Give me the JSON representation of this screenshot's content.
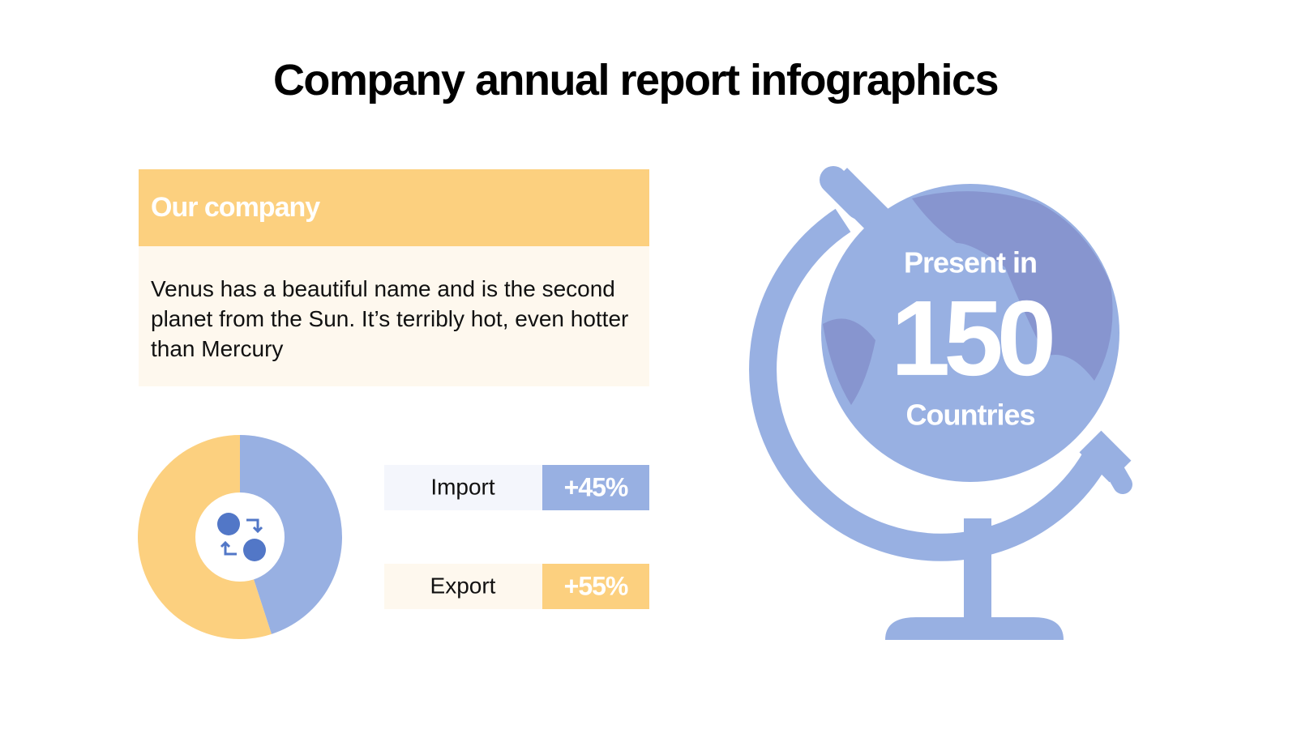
{
  "title": "Company annual report infographics",
  "company": {
    "heading": "Our company",
    "text": "Venus has a beautiful name and is the second planet from the Sun. It’s terribly hot, even hotter than Mercury"
  },
  "chart_data": {
    "type": "pie",
    "categories": [
      "Import",
      "Export"
    ],
    "values": [
      45,
      55
    ],
    "value_labels": [
      "+45%",
      "+55%"
    ],
    "colors": [
      "#98b0e2",
      "#fcd07f"
    ]
  },
  "globe": {
    "label_top": "Present in",
    "number": 150,
    "label_bottom": "Countries"
  }
}
